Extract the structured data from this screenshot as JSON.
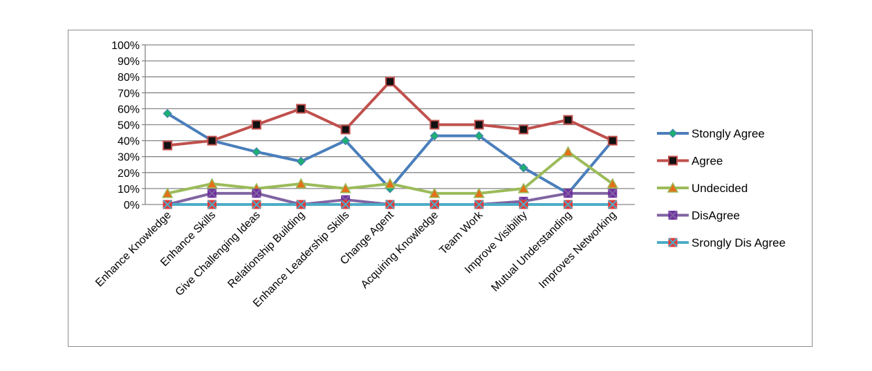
{
  "chart_data": {
    "type": "line",
    "title": "",
    "xlabel": "",
    "ylabel": "",
    "ylim": [
      0,
      100
    ],
    "y_ticks": [
      "0%",
      "10%",
      "20%",
      "30%",
      "40%",
      "50%",
      "60%",
      "70%",
      "80%",
      "90%",
      "100%"
    ],
    "grid": "horizontal",
    "legend_position": "right",
    "categories": [
      "Enhance Knowledge",
      "Enhance Skills",
      "Give Challenging Ideas",
      "Relationship Building",
      "Enhance Leadership Skills",
      "Change Agent",
      "Acquiring Knowledge",
      "Team Work",
      "Improve Visibility",
      "Mutual Understanding",
      "Improves Networking"
    ],
    "series": [
      {
        "name": "Stongly Agree",
        "color": "#4a7ebb",
        "marker": "diamond",
        "marker_color": "#1fae73",
        "values": [
          57,
          40,
          33,
          27,
          40,
          10,
          43,
          43,
          23,
          7,
          40
        ]
      },
      {
        "name": "Agree",
        "color": "#c0504d",
        "marker": "square",
        "marker_color": "#111111",
        "values": [
          37,
          40,
          50,
          60,
          47,
          77,
          50,
          50,
          47,
          53,
          40
        ]
      },
      {
        "name": "Undecided",
        "color": "#9bbb59",
        "marker": "triangle",
        "marker_color": "#e3701a",
        "values": [
          7,
          13,
          10,
          13,
          10,
          13,
          7,
          7,
          10,
          33,
          13
        ]
      },
      {
        "name": "DisAgree",
        "color": "#8064a2",
        "marker": "x-square",
        "marker_color": "#7030a0",
        "values": [
          0,
          7,
          7,
          0,
          3,
          0,
          0,
          0,
          2,
          7,
          7
        ]
      },
      {
        "name": "Srongly Dis Agree",
        "color": "#4bacc6",
        "marker": "x-square",
        "marker_color": "#e03c3c",
        "values": [
          0,
          0,
          0,
          0,
          0,
          0,
          0,
          0,
          0,
          0,
          0
        ]
      }
    ]
  }
}
